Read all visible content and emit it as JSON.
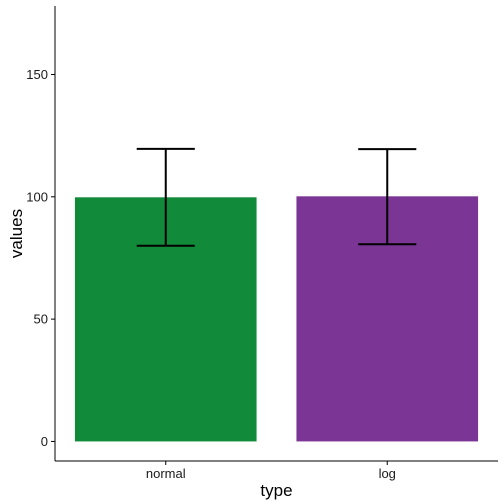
{
  "chart_data": {
    "type": "bar",
    "categories": [
      "normal",
      "log"
    ],
    "values": [
      99.8,
      100.2
    ],
    "error_low": [
      80.0,
      80.6
    ],
    "error_high": [
      119.6,
      119.5
    ],
    "colors": [
      "#118a39",
      "#7b3595"
    ],
    "xlabel": "type",
    "ylabel": "values",
    "ylim": [
      -8,
      178
    ],
    "yticks": [
      0,
      50,
      100,
      150
    ],
    "ytick_labels": [
      "0",
      "50",
      "100",
      "150"
    ],
    "grid": false,
    "legend": "none"
  }
}
